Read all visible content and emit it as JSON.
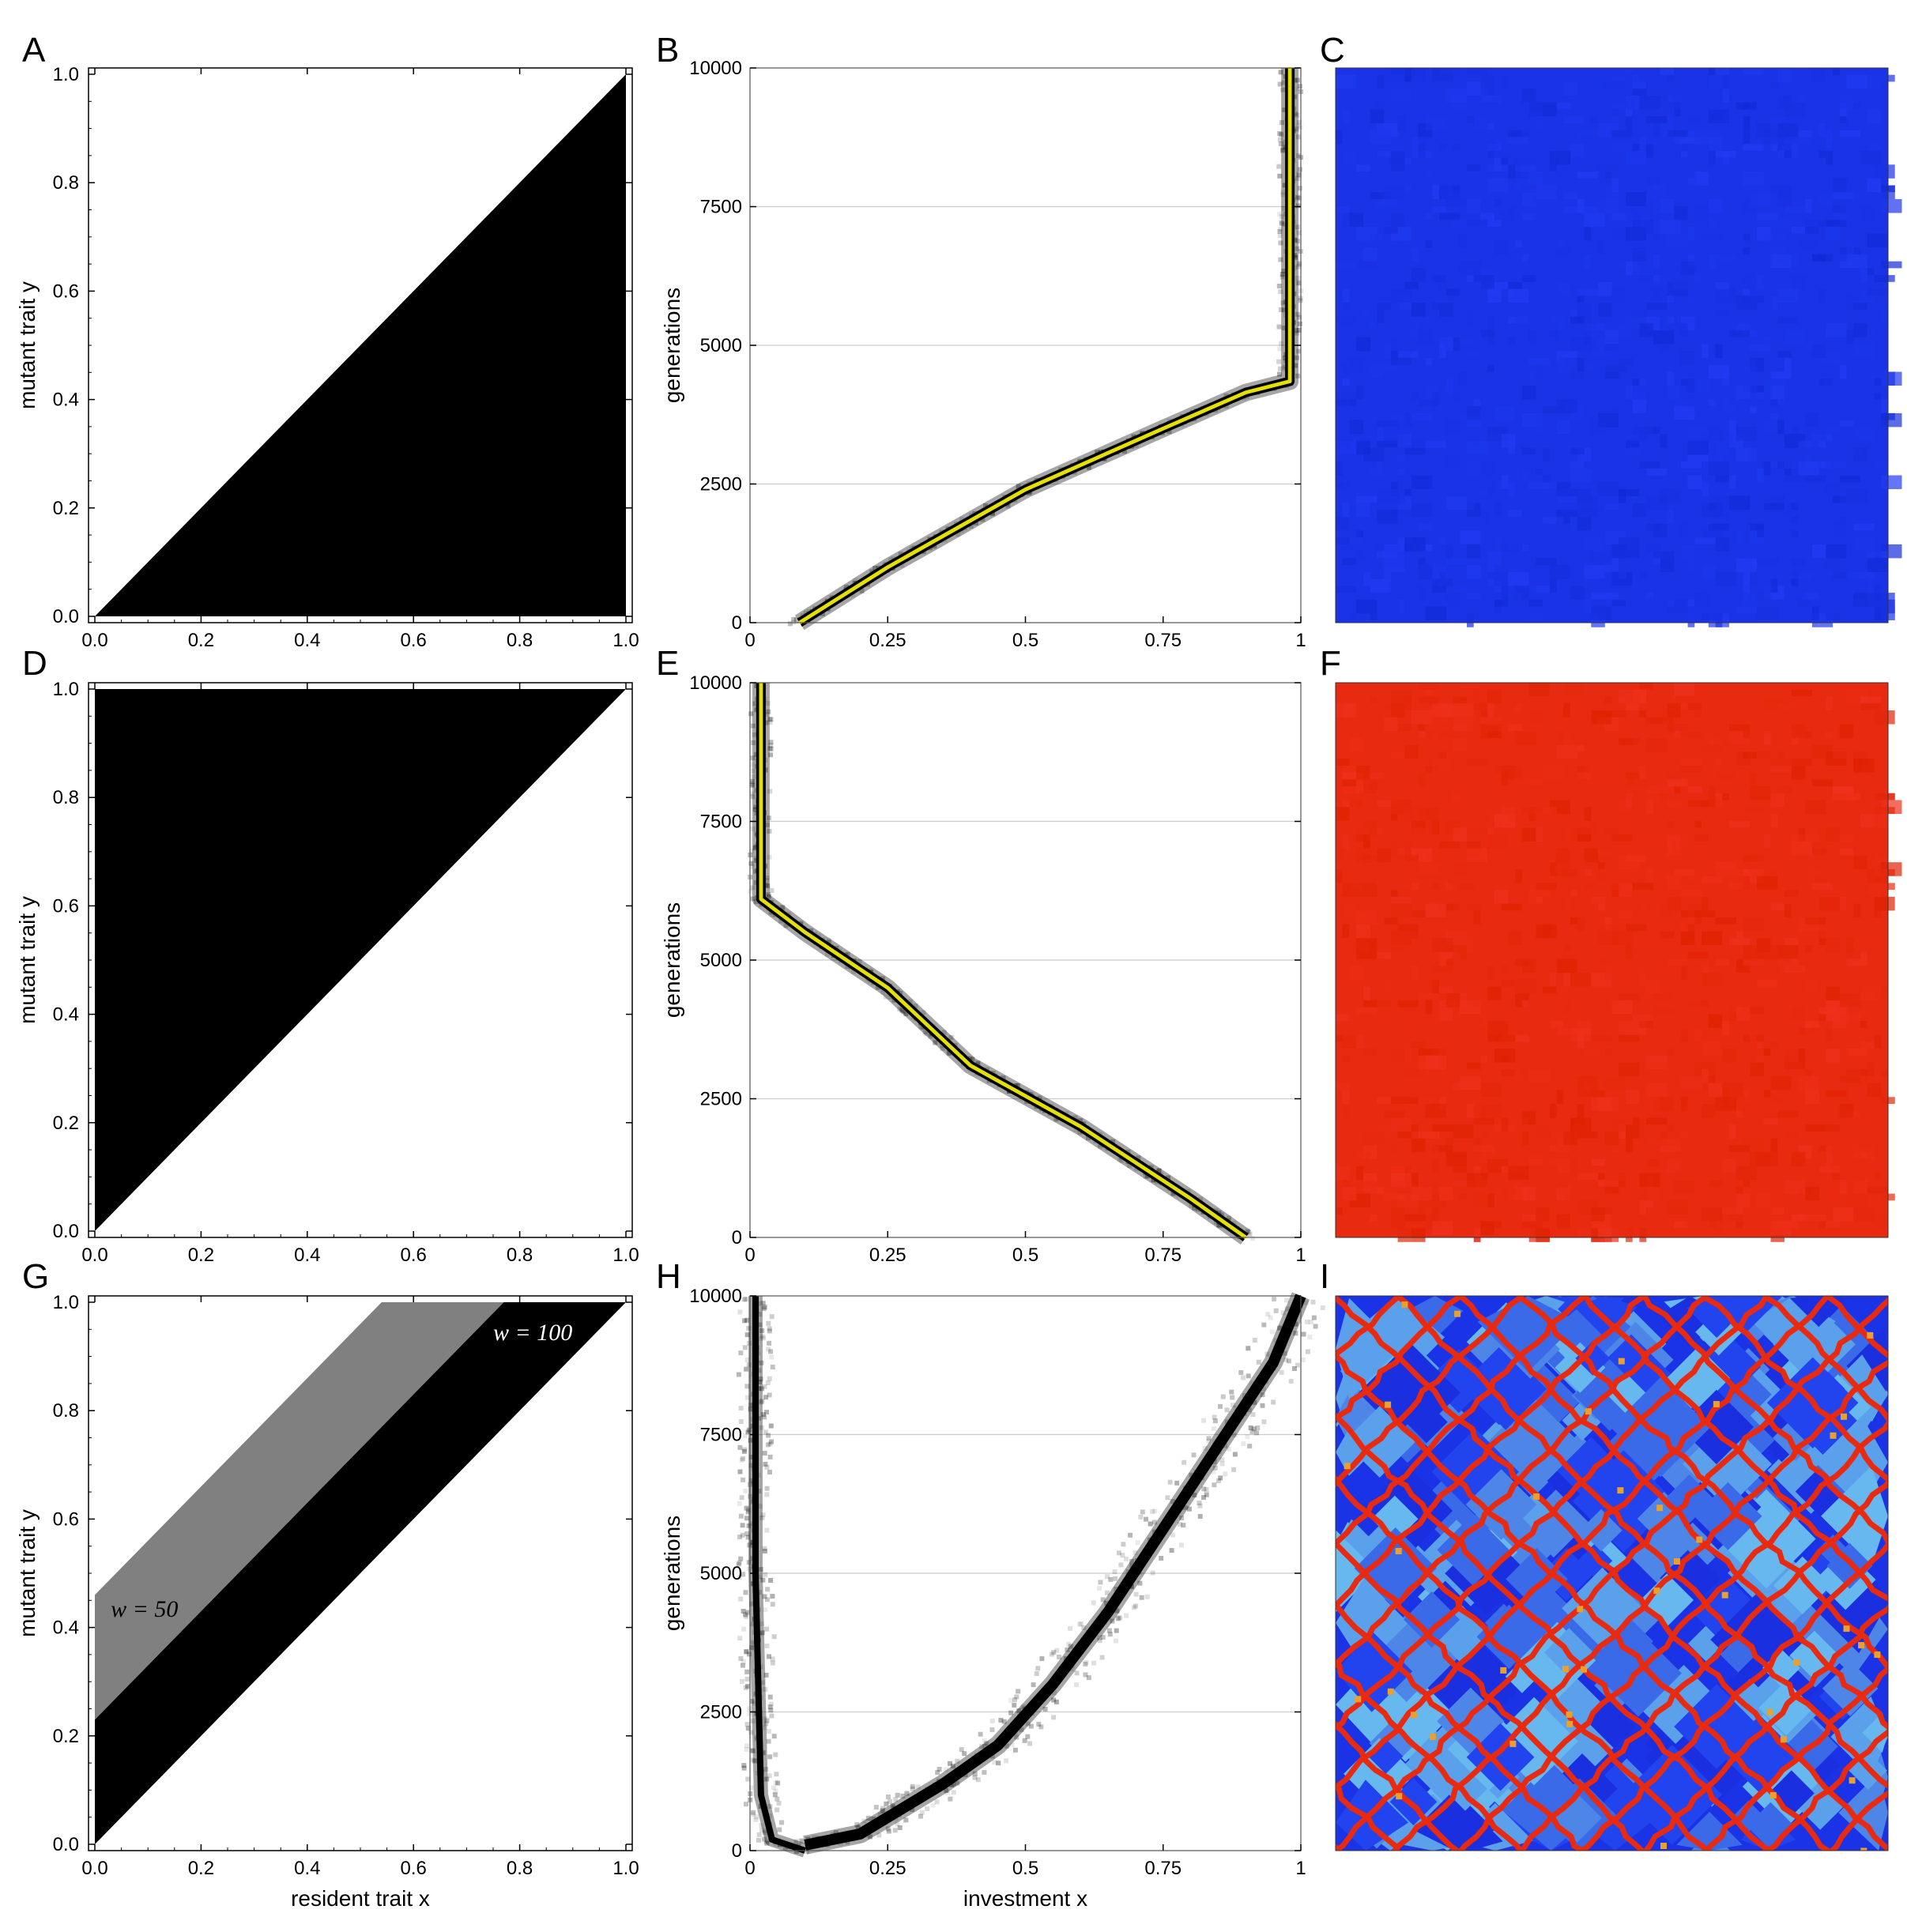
{
  "panel_letters": [
    "A",
    "B",
    "C",
    "D",
    "E",
    "F",
    "G",
    "H",
    "I"
  ],
  "colors": {
    "black": "#000000",
    "grey": "#808080",
    "yellow": "#e6e000",
    "blue": "#1a33e6",
    "red": "#e82a10",
    "light_blue": "#5599ee",
    "grid": "#cccccc"
  },
  "chart_data": [
    {
      "id": "A",
      "type": "heatmap",
      "xlabel": "",
      "ylabel": "mutant trait y",
      "xlim": [
        0,
        1
      ],
      "ylim": [
        0,
        1
      ],
      "xticks": [
        "0.0",
        "0.2",
        "0.4",
        "0.6",
        "0.8",
        "1.0"
      ],
      "yticks": [
        "0.0",
        "0.2",
        "0.4",
        "0.6",
        "0.8",
        "1.0"
      ],
      "regions": [
        {
          "shape": "lower-triangle",
          "condition": "y < x",
          "color": "black"
        }
      ]
    },
    {
      "id": "B",
      "type": "heatmap",
      "xlabel": "",
      "ylabel": "generations",
      "xlim": [
        0,
        1
      ],
      "ylim": [
        0,
        10000
      ],
      "xticks": [
        "0",
        "0.25",
        "0.5",
        "0.75",
        "1"
      ],
      "yticks": [
        "0",
        "2500",
        "5000",
        "7500",
        "10000"
      ],
      "grid": true,
      "trajectory": {
        "x": [
          0.09,
          0.25,
          0.5,
          0.75,
          0.9,
          0.98,
          0.98
        ],
        "y": [
          0,
          1000,
          2400,
          3500,
          4150,
          4350,
          10000
        ]
      }
    },
    {
      "id": "C",
      "type": "heatmap",
      "description_color": "blue",
      "pattern": "uniform"
    },
    {
      "id": "D",
      "type": "heatmap",
      "xlabel": "",
      "ylabel": "mutant trait y",
      "xlim": [
        0,
        1
      ],
      "ylim": [
        0,
        1
      ],
      "xticks": [
        "0.0",
        "0.2",
        "0.4",
        "0.6",
        "0.8",
        "1.0"
      ],
      "yticks": [
        "0.0",
        "0.2",
        "0.4",
        "0.6",
        "0.8",
        "1.0"
      ],
      "regions": [
        {
          "shape": "upper-triangle",
          "condition": "y > x",
          "color": "black"
        }
      ]
    },
    {
      "id": "E",
      "type": "heatmap",
      "xlabel": "",
      "ylabel": "generations",
      "xlim": [
        0,
        1
      ],
      "ylim": [
        0,
        10000
      ],
      "xticks": [
        "0",
        "0.25",
        "0.5",
        "0.75",
        "1"
      ],
      "yticks": [
        "0",
        "2500",
        "5000",
        "7500",
        "10000"
      ],
      "grid": true,
      "trajectory": {
        "x": [
          0.9,
          0.8,
          0.6,
          0.4,
          0.25,
          0.1,
          0.02,
          0.02
        ],
        "y": [
          0,
          700,
          2000,
          3100,
          4500,
          5500,
          6100,
          10000
        ]
      }
    },
    {
      "id": "F",
      "type": "heatmap",
      "description_color": "red",
      "pattern": "uniform"
    },
    {
      "id": "G",
      "type": "heatmap",
      "xlabel": "resident trait x",
      "ylabel": "mutant trait y",
      "xlim": [
        0,
        1
      ],
      "ylim": [
        0,
        1
      ],
      "xticks": [
        "0.0",
        "0.2",
        "0.4",
        "0.6",
        "0.8",
        "1.0"
      ],
      "yticks": [
        "0.0",
        "0.2",
        "0.4",
        "0.6",
        "0.8",
        "1.0"
      ],
      "regions": [
        {
          "shape": "band",
          "lower": 0.0,
          "upper": 0.23,
          "color": "black"
        },
        {
          "shape": "band",
          "lower": 0.23,
          "upper": 0.46,
          "color": "grey"
        }
      ],
      "annotations": [
        {
          "text": "w = 50",
          "x": 0.03,
          "y": 0.42
        },
        {
          "text": "w = 100",
          "x": 0.75,
          "y": 0.93
        }
      ]
    },
    {
      "id": "H",
      "type": "heatmap",
      "xlabel": "investment x",
      "ylabel": "generations",
      "xlim": [
        0,
        1
      ],
      "ylim": [
        0,
        10000
      ],
      "xticks": [
        "0",
        "0.25",
        "0.5",
        "0.75",
        "1"
      ],
      "yticks": [
        "0",
        "2500",
        "5000",
        "7500",
        "10000"
      ],
      "grid": true,
      "branches": [
        {
          "x": [
            0.1,
            0.04,
            0.02,
            0.01,
            0.01
          ],
          "y": [
            0,
            200,
            1000,
            5000,
            10000
          ]
        },
        {
          "x": [
            0.1,
            0.2,
            0.35,
            0.45,
            0.55,
            0.65,
            0.75,
            0.85,
            0.95,
            1.0
          ],
          "y": [
            100,
            300,
            1200,
            1900,
            3000,
            4300,
            5800,
            7300,
            8800,
            10000
          ]
        }
      ]
    },
    {
      "id": "I",
      "type": "heatmap",
      "description_color": "blue with red boundaries",
      "pattern": "patches"
    }
  ]
}
